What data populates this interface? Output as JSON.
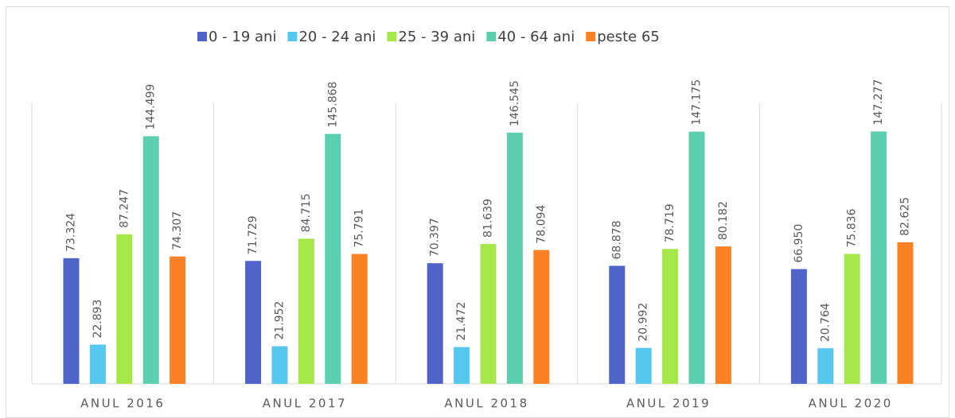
{
  "chart_data": {
    "type": "bar",
    "categories": [
      "ANUL 2016",
      "ANUL 2017",
      "ANUL 2018",
      "ANUL 2019",
      "ANUL 2020"
    ],
    "series": [
      {
        "name": "0 - 19 ani",
        "color": "#4f63c8",
        "values": [
          73324,
          71729,
          70397,
          68878,
          66950
        ],
        "value_labels": [
          "73.324",
          "71.729",
          "70.397",
          "68.878",
          "66.950"
        ]
      },
      {
        "name": "20 - 24 ani",
        "color": "#56c8f0",
        "values": [
          22893,
          21952,
          21472,
          20992,
          20764
        ],
        "value_labels": [
          "22.893",
          "21.952",
          "21.472",
          "20.992",
          "20.764"
        ]
      },
      {
        "name": "25 - 39 ani",
        "color": "#a6e84a",
        "values": [
          87247,
          84715,
          81639,
          78719,
          75836
        ],
        "value_labels": [
          "87.247",
          "84.715",
          "81.639",
          "78.719",
          "75.836"
        ]
      },
      {
        "name": "40 - 64 ani",
        "color": "#5bcfb0",
        "values": [
          144499,
          145868,
          146545,
          147175,
          147277
        ],
        "value_labels": [
          "144.499",
          "145.868",
          "146.545",
          "147.175",
          "147.277"
        ]
      },
      {
        "name": "peste 65",
        "color": "#fb8224",
        "values": [
          74307,
          75791,
          78094,
          80182,
          82625
        ],
        "value_labels": [
          "74.307",
          "75.791",
          "78.094",
          "80.182",
          "82.625"
        ]
      }
    ],
    "ylim": [
      0,
      160000
    ],
    "legend": "top"
  }
}
